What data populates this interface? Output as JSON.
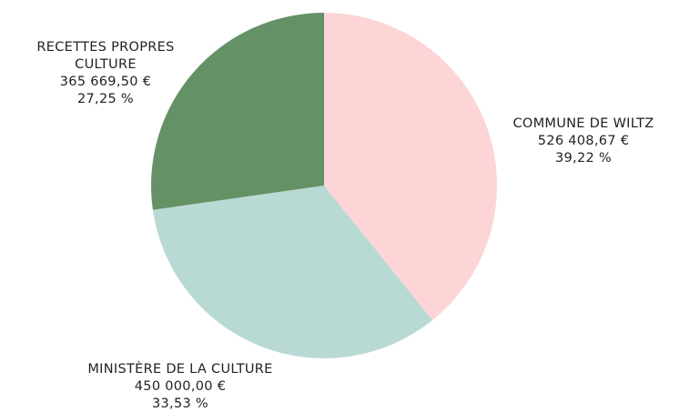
{
  "chart_data": {
    "type": "pie",
    "categories": [
      "COMMUNE DE WILTZ",
      "MINISTÈRE DE LA CULTURE",
      "RECETTES PROPRES CULTURE"
    ],
    "values": [
      526408.67,
      450000.0,
      365669.5
    ],
    "value_labels": [
      "526 408,67 €",
      "450 000,00 €",
      "365 669,50 €"
    ],
    "percentages": [
      39.22,
      33.53,
      27.25
    ],
    "percentage_labels": [
      "39,22 %",
      "33,53 %",
      "27,25 %"
    ],
    "colors": [
      "#fdd5d6",
      "#b9d9d5",
      "#659166"
    ]
  }
}
